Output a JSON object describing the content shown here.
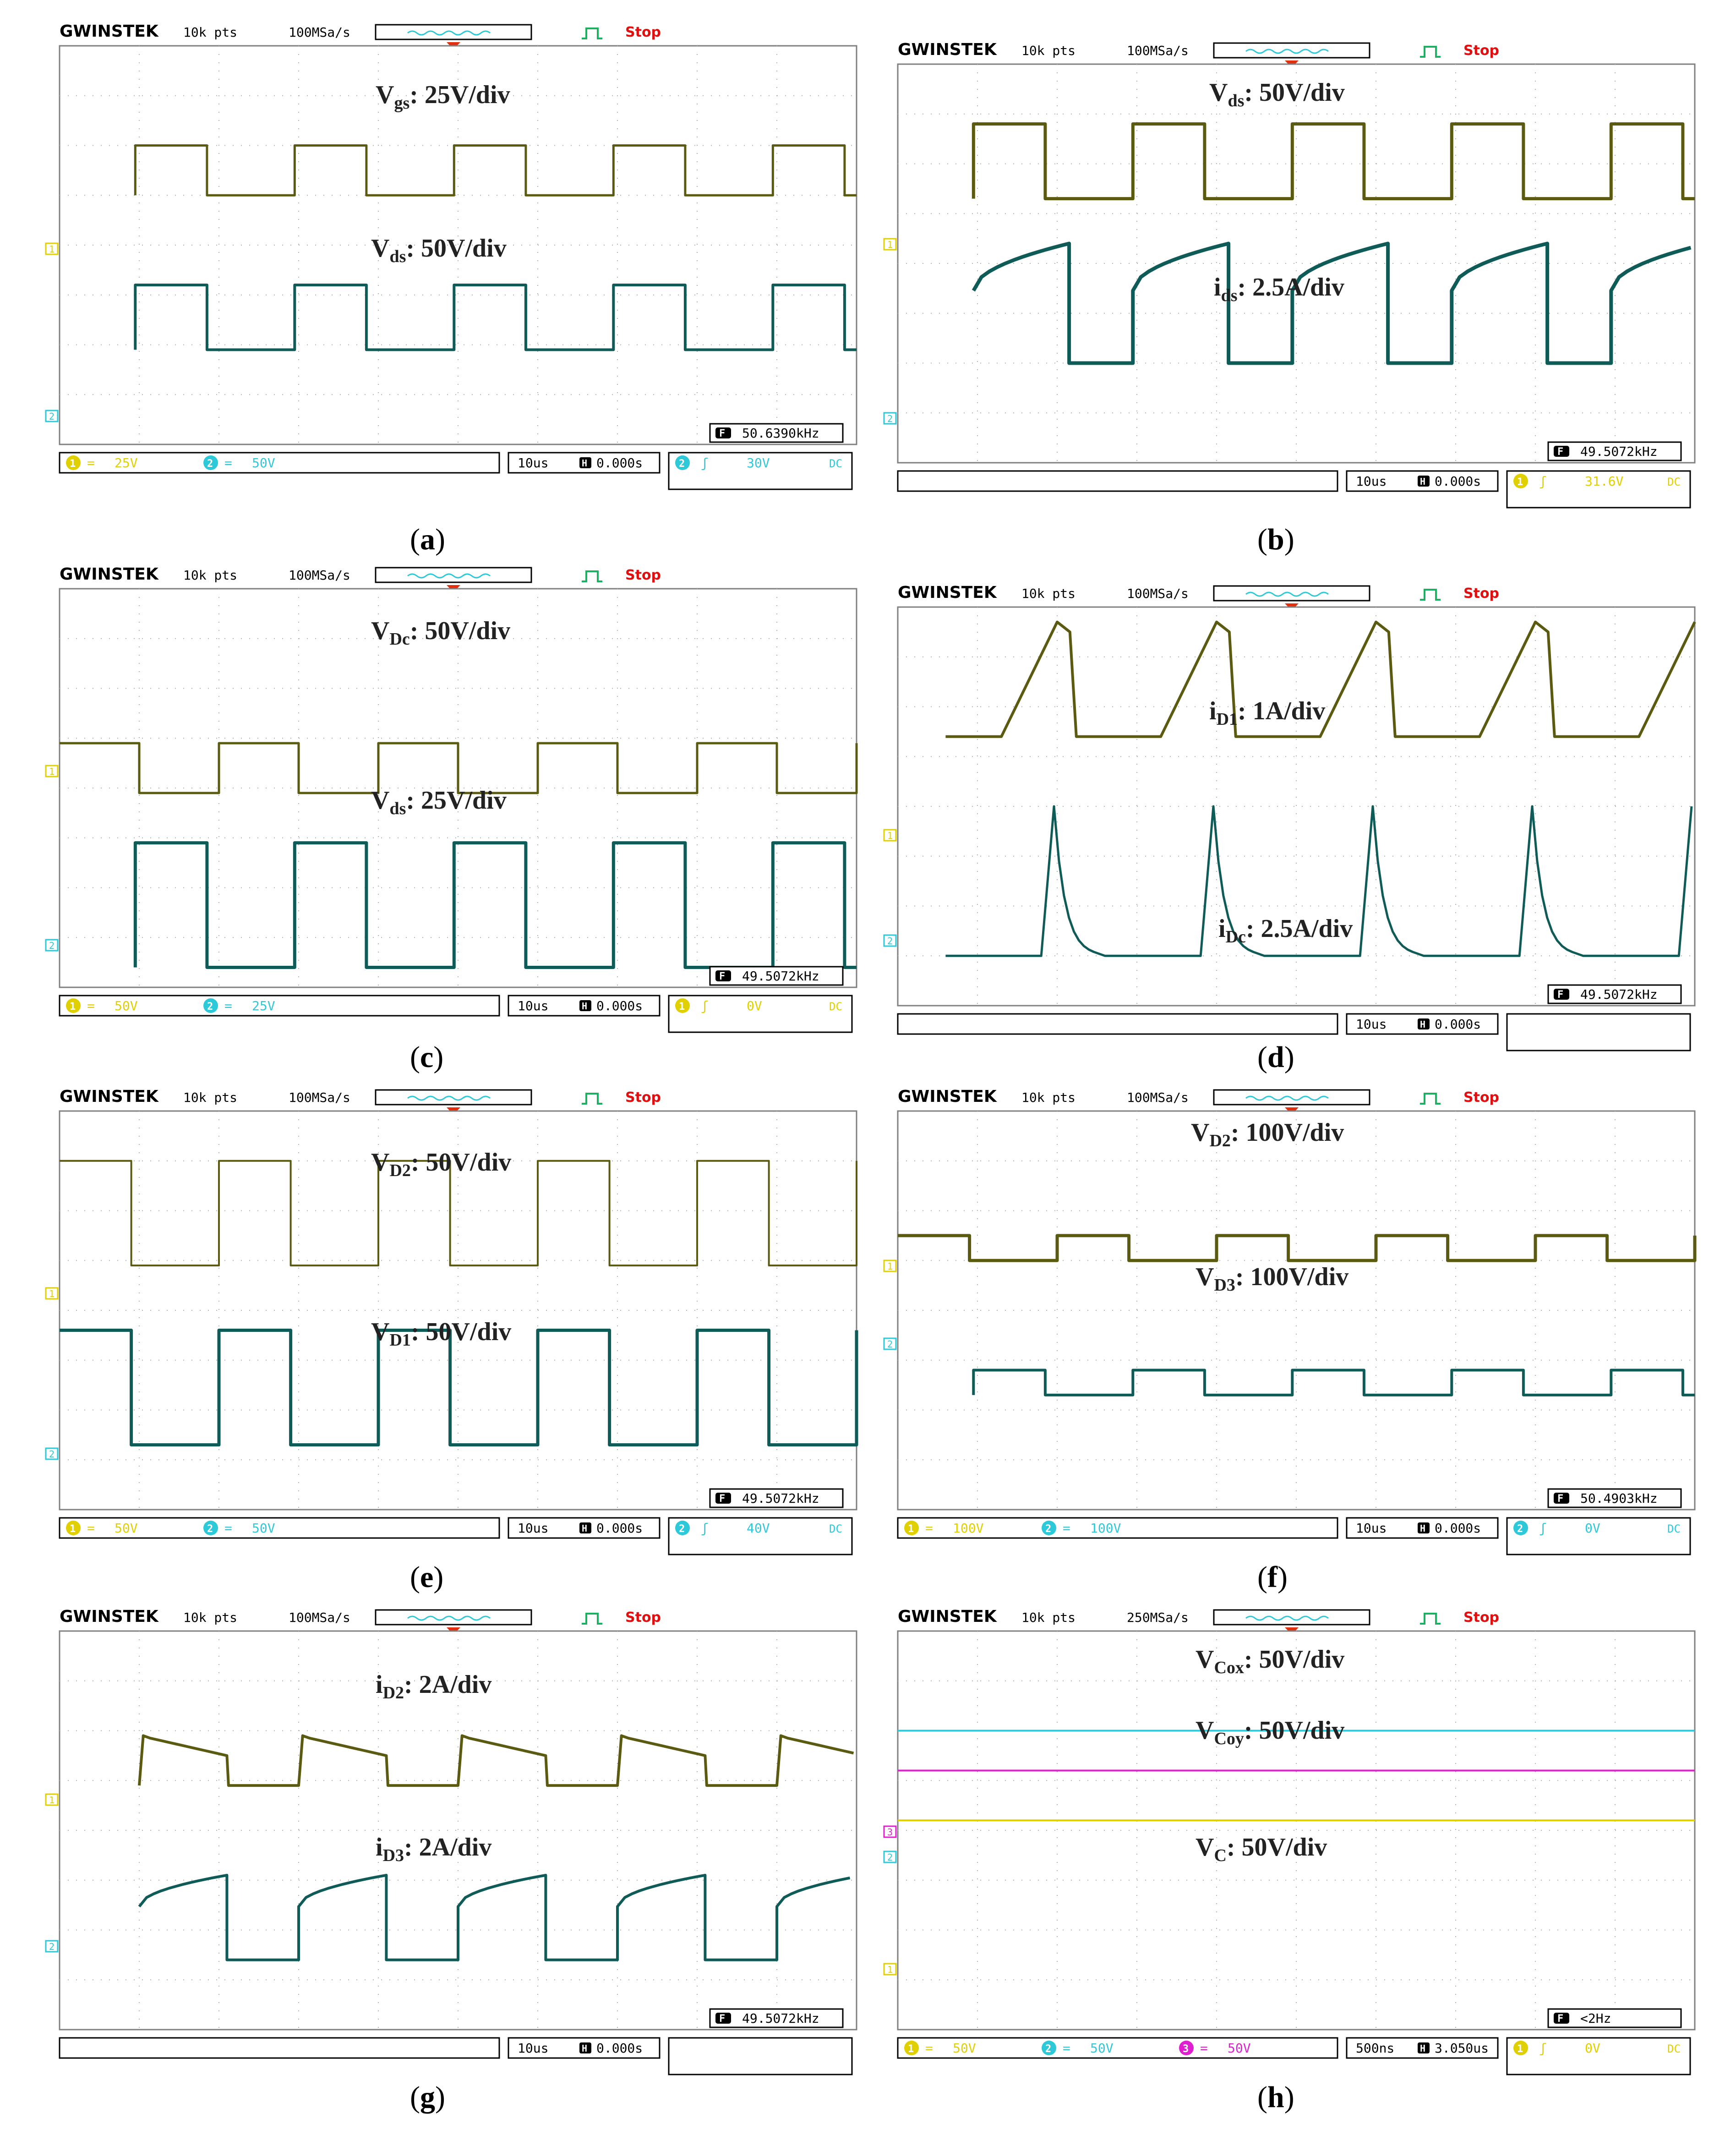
{
  "colors": {
    "ch1": "#5a5a10",
    "ch2": "#0f5b57",
    "cyan": "#2ec9d8",
    "magenta": "#e020d0",
    "yellow": "#e0d000",
    "trig": "#e03010",
    "grid": "#808080",
    "stop": "#e01010"
  },
  "panels": [
    {
      "id": "a",
      "caption_letter": "a",
      "brand": "GWINSTEK",
      "pts": "10k pts",
      "rate": "100MSa/s",
      "state": "Stop",
      "labels": [
        {
          "main": "V",
          "sub": "gs",
          "rest": ": 25V/div"
        },
        {
          "main": "V",
          "sub": "ds",
          "rest": ": 50V/div"
        }
      ],
      "marker1": "1",
      "marker2": "2",
      "freq": "50.6390kHz",
      "ch1_scale": "25V",
      "ch2_scale": "50V",
      "ch3_scale": "",
      "timebase": "10us",
      "delay": "0.000s",
      "trig_src": "2",
      "trig_level": "30V",
      "trig_coupling": "DC"
    },
    {
      "id": "b",
      "caption_letter": "b",
      "brand": "GWINSTEK",
      "pts": "10k pts",
      "rate": "100MSa/s",
      "state": "Stop",
      "labels": [
        {
          "main": "V",
          "sub": "ds",
          "rest": ": 50V/div"
        },
        {
          "main": "i",
          "sub": "ds",
          "rest": ": 2.5A/div"
        }
      ],
      "marker1": "1",
      "marker2": "2",
      "freq": "49.5072kHz",
      "ch1_scale": "",
      "ch2_scale": "",
      "ch3_scale": "",
      "timebase": "10us",
      "delay": "0.000s",
      "trig_src": "1",
      "trig_level": "31.6V",
      "trig_coupling": "DC"
    },
    {
      "id": "c",
      "caption_letter": "c",
      "brand": "GWINSTEK",
      "pts": "10k pts",
      "rate": "100MSa/s",
      "state": "Stop",
      "labels": [
        {
          "main": "V",
          "sub": "Dc",
          "rest": ": 50V/div"
        },
        {
          "main": "V",
          "sub": "ds",
          "rest": ": 25V/div"
        }
      ],
      "marker1": "1",
      "marker2": "2",
      "freq": "49.5072kHz",
      "ch1_scale": "50V",
      "ch2_scale": "25V",
      "ch3_scale": "",
      "timebase": "10us",
      "delay": "0.000s",
      "trig_src": "1",
      "trig_level": "0V",
      "trig_coupling": "DC"
    },
    {
      "id": "d",
      "caption_letter": "d",
      "brand": "GWINSTEK",
      "pts": "10k pts",
      "rate": "100MSa/s",
      "state": "Stop",
      "labels": [
        {
          "main": "i",
          "sub": "D1",
          "rest": ": 1A/div"
        },
        {
          "main": "i",
          "sub": "Dc",
          "rest": ": 2.5A/div"
        }
      ],
      "marker1": "1",
      "marker2": "2",
      "freq": "49.5072kHz",
      "ch1_scale": "",
      "ch2_scale": "",
      "ch3_scale": "",
      "timebase": "10us",
      "delay": "0.000s",
      "trig_src": "",
      "trig_level": "",
      "trig_coupling": ""
    },
    {
      "id": "e",
      "caption_letter": "e",
      "brand": "GWINSTEK",
      "pts": "10k pts",
      "rate": "100MSa/s",
      "state": "Stop",
      "labels": [
        {
          "main": "V",
          "sub": "D2",
          "rest": ": 50V/div"
        },
        {
          "main": "V",
          "sub": "D1",
          "rest": ": 50V/div"
        }
      ],
      "marker1": "1",
      "marker2": "2",
      "freq": "49.5072kHz",
      "ch1_scale": "50V",
      "ch2_scale": "50V",
      "ch3_scale": "",
      "timebase": "10us",
      "delay": "0.000s",
      "trig_src": "2",
      "trig_level": "40V",
      "trig_coupling": "DC"
    },
    {
      "id": "f",
      "caption_letter": "f",
      "brand": "GWINSTEK",
      "pts": "10k pts",
      "rate": "100MSa/s",
      "state": "Stop",
      "labels": [
        {
          "main": "V",
          "sub": "D2",
          "rest": ": 100V/div"
        },
        {
          "main": "V",
          "sub": "D3",
          "rest": ": 100V/div"
        }
      ],
      "marker1": "1",
      "marker2": "2",
      "freq": "50.4903kHz",
      "ch1_scale": "100V",
      "ch2_scale": "100V",
      "ch3_scale": "",
      "timebase": "10us",
      "delay": "0.000s",
      "trig_src": "2",
      "trig_level": "0V",
      "trig_coupling": "DC"
    },
    {
      "id": "g",
      "caption_letter": "g",
      "brand": "GWINSTEK",
      "pts": "10k pts",
      "rate": "100MSa/s",
      "state": "Stop",
      "labels": [
        {
          "main": "i",
          "sub": "D2",
          "rest": ": 2A/div"
        },
        {
          "main": "i",
          "sub": "D3",
          "rest": ": 2A/div"
        }
      ],
      "marker1": "1",
      "marker2": "2",
      "freq": "49.5072kHz",
      "ch1_scale": "",
      "ch2_scale": "",
      "ch3_scale": "",
      "timebase": "10us",
      "delay": "0.000s",
      "trig_src": "",
      "trig_level": "",
      "trig_coupling": ""
    },
    {
      "id": "h",
      "caption_letter": "h",
      "brand": "GWINSTEK",
      "pts": "10k pts",
      "rate": "250MSa/s",
      "state": "Stop",
      "labels": [
        {
          "main": "V",
          "sub": "Cox",
          "rest": ": 50V/div"
        },
        {
          "main": "V",
          "sub": "Coy",
          "rest": ": 50V/div"
        },
        {
          "main": "V",
          "sub": "C",
          "rest": ": 50V/div"
        }
      ],
      "marker1": "1",
      "marker2": "2",
      "marker3": "3",
      "freq": "<2Hz",
      "ch1_scale": "50V",
      "ch2_scale": "50V",
      "ch3_scale": "50V",
      "timebase": "500ns",
      "delay": "3.050us",
      "trig_src": "1",
      "trig_level": "0V",
      "trig_coupling": "DC"
    }
  ],
  "chart_data": [
    {
      "type": "line",
      "panel": "a",
      "title": "Vgs: 25V/div, Vds: 50V/div",
      "xlabel": "time (10us/div)",
      "ylabel": "",
      "x_divisions": 10,
      "frequency_kHz": 50.639,
      "series": [
        {
          "name": "Vgs",
          "scale": "25V/div",
          "waveform": "square",
          "periods": 5
        },
        {
          "name": "Vds",
          "scale": "50V/div",
          "waveform": "square",
          "periods": 5
        }
      ]
    },
    {
      "type": "line",
      "panel": "b",
      "title": "Vds: 50V/div, ids: 2.5A/div",
      "xlabel": "time (10us/div)",
      "ylabel": "",
      "x_divisions": 10,
      "frequency_kHz": 49.5072,
      "series": [
        {
          "name": "Vds",
          "scale": "50V/div",
          "waveform": "square",
          "periods": 5
        },
        {
          "name": "ids",
          "scale": "2.5A/div",
          "waveform": "rising ramp with drop",
          "periods": 5
        }
      ]
    },
    {
      "type": "line",
      "panel": "c",
      "title": "VDc: 50V/div, Vds: 25V/div",
      "xlabel": "time (10us/div)",
      "ylabel": "",
      "x_divisions": 10,
      "frequency_kHz": 49.5072,
      "series": [
        {
          "name": "VDc",
          "scale": "50V/div",
          "waveform": "square",
          "periods": 5
        },
        {
          "name": "Vds",
          "scale": "25V/div",
          "waveform": "square",
          "periods": 5
        }
      ]
    },
    {
      "type": "line",
      "panel": "d",
      "title": "iD1: 1A/div, iDc: 2.5A/div",
      "xlabel": "time (10us/div)",
      "ylabel": "",
      "x_divisions": 10,
      "frequency_kHz": 49.5072,
      "series": [
        {
          "name": "iD1",
          "scale": "1A/div",
          "waveform": "triangular pulse",
          "periods": 5
        },
        {
          "name": "iDc",
          "scale": "2.5A/div",
          "waveform": "spike with decay",
          "periods": 5
        }
      ]
    },
    {
      "type": "line",
      "panel": "e",
      "title": "VD2: 50V/div, VD1: 50V/div",
      "xlabel": "time (10us/div)",
      "ylabel": "",
      "x_divisions": 10,
      "frequency_kHz": 49.5072,
      "series": [
        {
          "name": "VD2",
          "scale": "50V/div",
          "waveform": "square",
          "periods": 5
        },
        {
          "name": "VD1",
          "scale": "50V/div",
          "waveform": "square",
          "periods": 5
        }
      ]
    },
    {
      "type": "line",
      "panel": "f",
      "title": "VD2: 100V/div, VD3: 100V/div",
      "xlabel": "time (10us/div)",
      "ylabel": "",
      "x_divisions": 10,
      "frequency_kHz": 50.4903,
      "series": [
        {
          "name": "VD2",
          "scale": "100V/div",
          "waveform": "square",
          "periods": 5
        },
        {
          "name": "VD3",
          "scale": "100V/div",
          "waveform": "square",
          "periods": 5
        }
      ]
    },
    {
      "type": "line",
      "panel": "g",
      "title": "iD2: 2A/div, iD3: 2A/div",
      "xlabel": "time (10us/div)",
      "ylabel": "",
      "x_divisions": 10,
      "frequency_kHz": 49.5072,
      "series": [
        {
          "name": "iD2",
          "scale": "2A/div",
          "waveform": "falling ramp",
          "periods": 5
        },
        {
          "name": "iD3",
          "scale": "2A/div",
          "waveform": "rising curve",
          "periods": 5
        }
      ]
    },
    {
      "type": "line",
      "panel": "h",
      "title": "VCox, VCoy, VC: 50V/div",
      "xlabel": "time (500ns/div)",
      "ylabel": "",
      "x_divisions": 10,
      "frequency": "<2Hz",
      "series": [
        {
          "name": "VCox",
          "scale": "50V/div",
          "waveform": "dc"
        },
        {
          "name": "VCoy",
          "scale": "50V/div",
          "waveform": "dc"
        },
        {
          "name": "VC",
          "scale": "50V/div",
          "waveform": "dc"
        }
      ]
    }
  ]
}
